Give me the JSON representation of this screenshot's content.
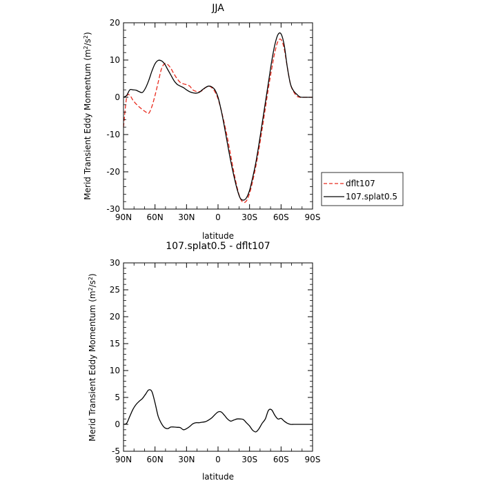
{
  "chart_data": [
    {
      "type": "line",
      "title": "JJA",
      "xlabel": "latitude",
      "ylabel": "Merid Transient Eddy Momentum (m²/s²)",
      "ylabel_base": "Merid Transient Eddy Momentum (m",
      "ylabel_exp": "2",
      "ylabel_mid": "/s",
      "ylabel_exp2": "2",
      "ylabel_end": ")",
      "xlim": [
        90,
        -90
      ],
      "ylim": [
        -30,
        20
      ],
      "yticks": [
        20,
        10,
        0,
        -10,
        -20,
        -30
      ],
      "xticks": [
        90,
        60,
        30,
        0,
        -30,
        -60,
        -90
      ],
      "xtick_labels": [
        "90N",
        "60N",
        "30N",
        "0",
        "30S",
        "60S",
        "90S"
      ],
      "legend": {
        "position": "right",
        "entries": [
          "dflt107",
          "107.splat0.5"
        ]
      },
      "series": [
        {
          "name": "dflt107",
          "color": "#e8291c",
          "dash": "dashed",
          "x": [
            90,
            87,
            84,
            81,
            78,
            75,
            72,
            69,
            66,
            63,
            60,
            57,
            54,
            51,
            48,
            45,
            42,
            39,
            36,
            33,
            30,
            27,
            24,
            21,
            18,
            15,
            12,
            9,
            6,
            3,
            0,
            -3,
            -6,
            -9,
            -12,
            -15,
            -18,
            -21,
            -24,
            -27,
            -30,
            -33,
            -36,
            -39,
            -42,
            -45,
            -48,
            -51,
            -54,
            -57,
            -60,
            -63,
            -66,
            -69,
            -72,
            -75,
            -78,
            -81,
            -84,
            -87,
            -90
          ],
          "y": [
            -8,
            0,
            0.5,
            -0.8,
            -1.8,
            -2.6,
            -3.3,
            -3.9,
            -4.3,
            -2.5,
            0.5,
            4.0,
            7.5,
            9.0,
            8.8,
            7.8,
            6.3,
            5.0,
            4.0,
            3.6,
            3.4,
            3.0,
            2.0,
            1.6,
            1.5,
            1.8,
            2.6,
            3.0,
            2.6,
            1.5,
            -0.4,
            -3.5,
            -7.0,
            -11.0,
            -15.5,
            -20.0,
            -24.0,
            -27.0,
            -28.2,
            -27.8,
            -25.8,
            -22.5,
            -18.5,
            -13.8,
            -8.5,
            -3.0,
            2.5,
            7.5,
            12.0,
            15.0,
            15.5,
            13.0,
            8.0,
            3.5,
            1.5,
            0.3,
            0.0,
            0,
            0,
            0,
            0
          ]
        },
        {
          "name": "107.splat0.5",
          "color": "#000000",
          "dash": "solid",
          "x": [
            90,
            87,
            84,
            81,
            78,
            75,
            72,
            69,
            66,
            63,
            60,
            57,
            54,
            51,
            48,
            45,
            42,
            39,
            36,
            33,
            30,
            27,
            24,
            21,
            18,
            15,
            12,
            9,
            6,
            3,
            0,
            -3,
            -6,
            -9,
            -12,
            -15,
            -18,
            -21,
            -24,
            -27,
            -30,
            -33,
            -36,
            -39,
            -42,
            -45,
            -48,
            -51,
            -54,
            -57,
            -60,
            -63,
            -66,
            -69,
            -72,
            -75,
            -78,
            -81,
            -84,
            -87,
            -90
          ],
          "y": [
            0,
            0.5,
            2.0,
            2.0,
            1.9,
            1.5,
            1.3,
            2.5,
            4.5,
            7.0,
            9.0,
            9.9,
            9.8,
            9.0,
            7.5,
            6.0,
            4.5,
            3.5,
            3.0,
            2.6,
            2.0,
            1.5,
            1.2,
            1.1,
            1.3,
            2.0,
            2.6,
            3.0,
            2.8,
            2.0,
            0.0,
            -3.5,
            -7.8,
            -12.5,
            -17.0,
            -21.0,
            -24.5,
            -27.0,
            -27.6,
            -27.0,
            -25.0,
            -21.5,
            -17.5,
            -12.5,
            -7.0,
            -1.5,
            4.0,
            9.5,
            14.0,
            16.8,
            17.0,
            14.0,
            8.0,
            3.5,
            1.7,
            0.8,
            0.1,
            0,
            0,
            0,
            0
          ]
        }
      ]
    },
    {
      "type": "line",
      "title": "107.splat0.5 - dflt107",
      "xlabel": "latitude",
      "ylabel": "Merid Transient Eddy Momentum (m²/s²)",
      "ylabel_base": "Merid Transient Eddy Momentum (m",
      "ylabel_exp": "2",
      "ylabel_mid": "/s",
      "ylabel_exp2": "2",
      "ylabel_end": ")",
      "xlim": [
        90,
        -90
      ],
      "ylim": [
        -5,
        30
      ],
      "yticks": [
        30,
        25,
        20,
        15,
        10,
        5,
        0,
        -5
      ],
      "xticks": [
        90,
        60,
        30,
        0,
        -30,
        -60,
        -90
      ],
      "xtick_labels": [
        "90N",
        "60N",
        "30N",
        "0",
        "30S",
        "60S",
        "90S"
      ],
      "series": [
        {
          "name": "",
          "color": "#000000",
          "dash": "solid",
          "x": [
            90,
            87,
            84,
            81,
            78,
            75,
            72,
            69,
            66,
            63,
            60,
            57,
            54,
            51,
            48,
            45,
            42,
            39,
            36,
            33,
            30,
            27,
            24,
            21,
            18,
            15,
            12,
            9,
            6,
            3,
            0,
            -3,
            -6,
            -9,
            -12,
            -15,
            -18,
            -21,
            -24,
            -27,
            -30,
            -33,
            -36,
            -39,
            -42,
            -45,
            -48,
            -51,
            -54,
            -57,
            -60,
            -63,
            -66,
            -69,
            -72,
            -75,
            -78,
            -81,
            -84,
            -87,
            -90
          ],
          "y": [
            0,
            0.2,
            1.5,
            2.8,
            3.7,
            4.3,
            4.8,
            5.6,
            6.4,
            6.1,
            4.0,
            1.5,
            0.2,
            -0.6,
            -0.8,
            -0.5,
            -0.5,
            -0.55,
            -0.6,
            -1.0,
            -0.8,
            -0.4,
            0.1,
            0.3,
            0.3,
            0.4,
            0.5,
            0.8,
            1.2,
            1.8,
            2.3,
            2.3,
            1.7,
            1.0,
            0.6,
            0.8,
            1.0,
            1.0,
            0.9,
            0.3,
            -0.3,
            -1.1,
            -1.4,
            -0.8,
            0.2,
            1.0,
            2.6,
            2.7,
            1.7,
            1.0,
            1.1,
            0.6,
            0.2,
            0.0,
            0,
            0,
            0,
            0,
            0,
            0,
            0
          ]
        }
      ]
    }
  ]
}
